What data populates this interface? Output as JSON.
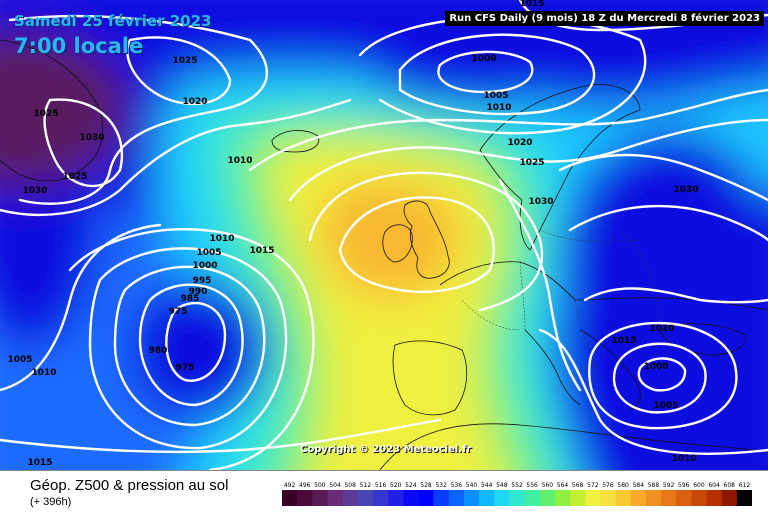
{
  "header": {
    "date": "Samedi 25 février 2023",
    "time": "7:00 locale",
    "run_info": "Run CFS Daily (9 mois) 18 Z du Mercredi 8 février 2023"
  },
  "copyright": "Copyright © 2023 Meteociel.fr",
  "footer": {
    "product": "Géop. Z500 & pression au sol",
    "lead_time": "(+ 396h)"
  },
  "legend": {
    "ticks": [
      "492",
      "496",
      "500",
      "504",
      "508",
      "512",
      "516",
      "520",
      "524",
      "528",
      "532",
      "536",
      "540",
      "544",
      "548",
      "552",
      "556",
      "560",
      "564",
      "568",
      "572",
      "576",
      "580",
      "584",
      "588",
      "592",
      "596",
      "600",
      "604",
      "608",
      "612"
    ],
    "colors": [
      "#3a0024",
      "#4a0a3a",
      "#5a1a55",
      "#6a2a75",
      "#5b3b95",
      "#4848b4",
      "#3737d0",
      "#2020e6",
      "#0a0af5",
      "#0000ff",
      "#0a3cff",
      "#0a64ff",
      "#0a90ff",
      "#10b8ff",
      "#20d8f0",
      "#30e8d0",
      "#40f0a0",
      "#60f070",
      "#90f040",
      "#c0f030",
      "#f0f040",
      "#f8e040",
      "#f8c830",
      "#f8a828",
      "#f09020",
      "#e87818",
      "#d86010",
      "#c84808",
      "#b83000",
      "#901800",
      "#000000"
    ]
  },
  "map": {
    "pressure_labels": [
      "1015",
      "1025",
      "1020",
      "1025",
      "1030",
      "1030",
      "1025",
      "1010",
      "1000",
      "1005",
      "1010",
      "1020",
      "1025",
      "1030",
      "1030",
      "1010",
      "1005",
      "1015",
      "1000",
      "995",
      "990",
      "985",
      "975",
      "980",
      "975",
      "1005",
      "1010",
      "1015",
      "1010",
      "1015",
      "1000",
      "1005",
      "1010"
    ],
    "colors": {
      "low_purple": "#5a1a60",
      "deep_blue": "#1010e0",
      "mid_blue": "#1a6cff",
      "light_blue": "#1ac8ff",
      "cyan": "#30e8d8",
      "green": "#70f070",
      "yellow": "#f0f040",
      "orange": "#f8b830"
    }
  }
}
